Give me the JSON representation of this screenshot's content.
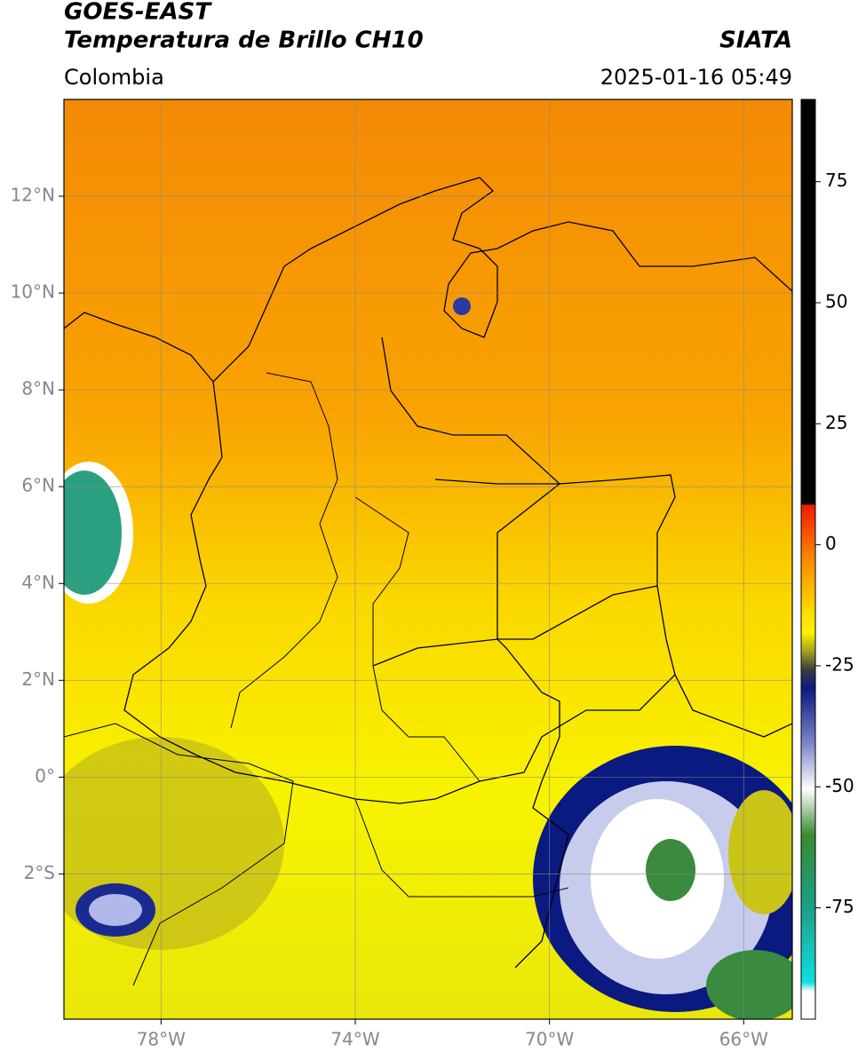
{
  "header": {
    "title": "GOES-EAST",
    "subtitle": "Temperatura de Brillo CH10",
    "source": "SIATA",
    "region": "Colombia",
    "timestamp": "2025-01-16 05:49"
  },
  "map": {
    "lonlim": [
      -80,
      -65
    ],
    "latlim": [
      -5,
      14
    ],
    "lon_ticks": [
      {
        "value": -78,
        "label": "78°W"
      },
      {
        "value": -74,
        "label": "74°W"
      },
      {
        "value": -70,
        "label": "70°W"
      },
      {
        "value": -66,
        "label": "66°W"
      }
    ],
    "lat_ticks": [
      {
        "value": 12,
        "label": "12°N"
      },
      {
        "value": 10,
        "label": "10°N"
      },
      {
        "value": 8,
        "label": "8°N"
      },
      {
        "value": 6,
        "label": "6°N"
      },
      {
        "value": 4,
        "label": "4°N"
      },
      {
        "value": 2,
        "label": "2°N"
      },
      {
        "value": 0,
        "label": "0°"
      },
      {
        "value": -2,
        "label": "2°S"
      }
    ]
  },
  "colorbar": {
    "clim": [
      -98,
      92
    ],
    "ticks": [
      75,
      50,
      25,
      0,
      -25,
      -50,
      -75
    ]
  }
}
